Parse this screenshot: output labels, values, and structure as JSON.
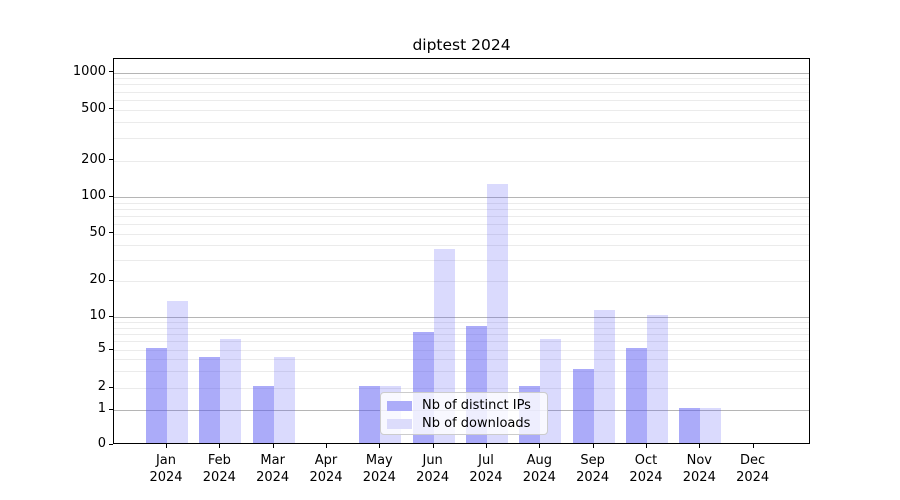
{
  "chart_data": {
    "type": "bar",
    "title": "diptest 2024",
    "categories": [
      "Jan",
      "Feb",
      "Mar",
      "Apr",
      "May",
      "Jun",
      "Jul",
      "Aug",
      "Sep",
      "Oct",
      "Nov",
      "Dec"
    ],
    "category_year": "2024",
    "series": [
      {
        "name": "Nb of distinct IPs",
        "fill": "rgba(88,88,244,0.5)",
        "swatch_color": "#acacf9",
        "values": [
          5,
          4,
          2,
          0,
          2,
          7,
          8,
          2,
          3,
          5,
          1,
          0
        ]
      },
      {
        "name": "Nb of downloads",
        "fill": "rgba(88,88,244,0.22)",
        "swatch_color": "#dcdcfb",
        "values": [
          13,
          6,
          4,
          0,
          2,
          36,
          123,
          6,
          11,
          10,
          1,
          0
        ]
      }
    ],
    "y_ticks": [
      0,
      1,
      2,
      5,
      10,
      20,
      50,
      100,
      200,
      500,
      1000
    ],
    "ylim": [
      0,
      1300
    ],
    "y_scale": "log above 1, compressed linear segment 0-1",
    "grid": {
      "major_lines": [
        1,
        10,
        100,
        1000
      ],
      "minor_lines": [
        2,
        3,
        4,
        5,
        6,
        7,
        8,
        9,
        20,
        30,
        40,
        50,
        60,
        70,
        80,
        90,
        200,
        300,
        400,
        500,
        600,
        700,
        800,
        900
      ]
    },
    "legend_position": "lower center inside plot",
    "xlabel": "",
    "ylabel": ""
  }
}
